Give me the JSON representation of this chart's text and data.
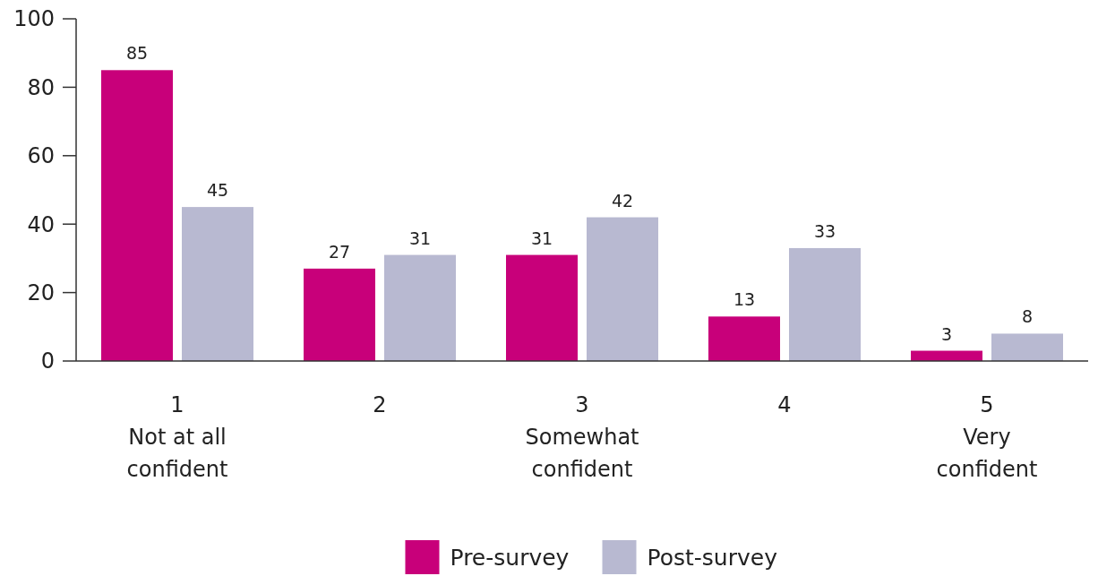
{
  "chart_data": {
    "type": "bar",
    "categories": [
      "1\nNot at all\nconfident",
      "2",
      "3\nSomewhat\nconfident",
      "4",
      "5\nVery\nconfident"
    ],
    "series": [
      {
        "name": "Pre-survey",
        "color": "#c8007a",
        "values": [
          85,
          27,
          31,
          13,
          3
        ]
      },
      {
        "name": "Post-survey",
        "color": "#b8b9d1",
        "values": [
          45,
          31,
          42,
          33,
          8
        ]
      }
    ],
    "ylim": [
      0,
      100
    ],
    "yticks": [
      0,
      20,
      40,
      60,
      80,
      100
    ],
    "data_labels": true,
    "legend": "bottom",
    "grid": false
  }
}
